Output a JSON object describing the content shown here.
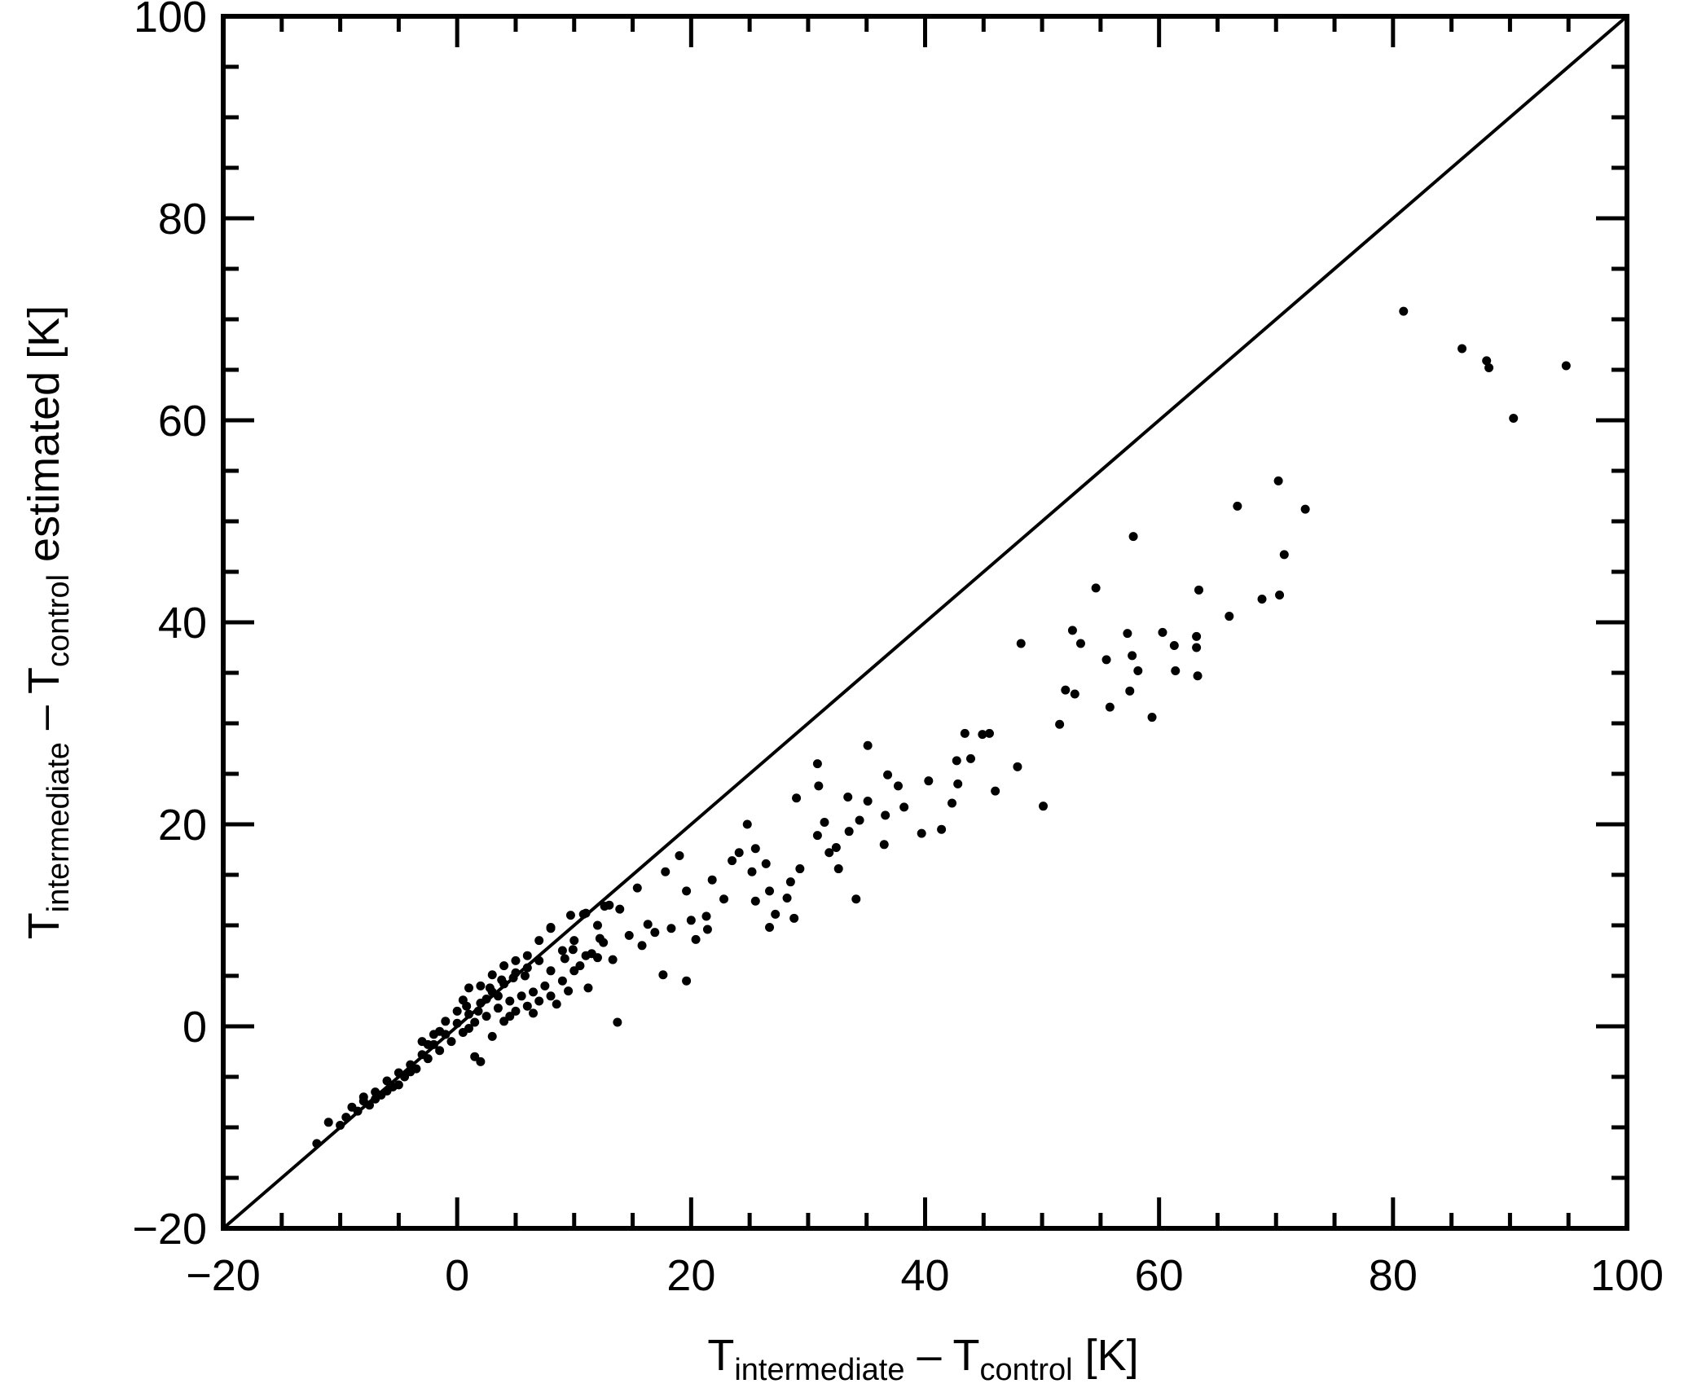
{
  "chart_data": {
    "type": "scatter",
    "x_label": [
      "T",
      "intermediate",
      " – T",
      "control",
      " [K]"
    ],
    "y_label": [
      "T",
      "intermediate",
      " – T",
      "control",
      " estimated [K]"
    ],
    "xlim": [
      -20,
      100
    ],
    "ylim": [
      -20,
      100
    ],
    "xticks": [
      {
        "value": -20,
        "label": "−20"
      },
      0,
      20,
      40,
      60,
      80,
      100
    ],
    "yticks": [
      {
        "value": -20,
        "label": "−20"
      },
      0,
      20,
      40,
      60,
      80,
      100
    ],
    "xminorticks": [
      -15,
      -10,
      -5,
      5,
      10,
      15,
      25,
      30,
      35,
      45,
      50,
      55,
      65,
      70,
      75,
      85,
      90,
      95
    ],
    "yminorticks": [
      -15,
      -10,
      -5,
      5,
      10,
      15,
      25,
      30,
      35,
      45,
      50,
      55,
      65,
      70,
      75,
      85,
      90,
      95
    ],
    "reference_line": {
      "x": [
        -20,
        100
      ],
      "y": [
        -20,
        100
      ],
      "color": "#000000"
    },
    "color": "#000000",
    "x": [
      80.9,
      85.9,
      88.0,
      88.2,
      94.8,
      90.3,
      70.2,
      66.7,
      72.5,
      57.8,
      70.7,
      54.6,
      63.4,
      70.3,
      68.8,
      66.0,
      52.6,
      57.3,
      60.3,
      63.2,
      48.2,
      53.3,
      61.3,
      63.2,
      57.7,
      55.5,
      58.2,
      61.4,
      63.3,
      52.0,
      52.8,
      57.5,
      55.8,
      59.4,
      51.5,
      43.4,
      44.9,
      45.5,
      35.1,
      30.8,
      42.7,
      43.9,
      47.9,
      36.8,
      37.7,
      40.3,
      42.8,
      46.0,
      30.9,
      29.0,
      33.4,
      35.1,
      38.2,
      50.1,
      42.3,
      36.6,
      34.4,
      31.4,
      24.8,
      41.4,
      39.7,
      33.5,
      30.8,
      36.5,
      32.4,
      31.8,
      24.1,
      25.5,
      19.0,
      23.5,
      26.4,
      29.3,
      32.6,
      25.2,
      17.8,
      21.8,
      28.5,
      26.7,
      15.4,
      19.6,
      34.1,
      25.5,
      12.6,
      13.9,
      22.8,
      28.2,
      21.3,
      27.2,
      28.8,
      26.7,
      20.0,
      16.3,
      18.3,
      21.4,
      10.8,
      9.7,
      14.7,
      16.9,
      8.0,
      20.4,
      12.2,
      15.8,
      11.5,
      13.3,
      9.2,
      9.9,
      17.6,
      19.6,
      11.2,
      13.7,
      -12,
      -11,
      -10,
      -9.5,
      -9,
      -8.5,
      -8,
      -7.5,
      -7,
      -6.5,
      -6,
      -5.5,
      -5,
      -4.5,
      -4,
      -3.5,
      -3,
      -2.5,
      -2,
      -1.5,
      -1,
      -0.5,
      0,
      0.5,
      1,
      1.5,
      2,
      2.5,
      3,
      3.5,
      4,
      4.5,
      5,
      5.5,
      6,
      6.5,
      7,
      7.5,
      8,
      2,
      1.5,
      3,
      4,
      5,
      6,
      7,
      8,
      9,
      10,
      -5,
      -4,
      -2,
      0,
      1,
      2,
      3,
      4,
      5,
      6,
      -1,
      0.5,
      3.5,
      2.5,
      -3,
      -6,
      -7,
      8,
      9,
      10,
      11,
      12,
      -8,
      1,
      4.5,
      6.5,
      8.5,
      9.5,
      -2.5,
      -1.5,
      0.8,
      1.8,
      2.8,
      3.8,
      4.8,
      5.8,
      7,
      10.5,
      12.5,
      11,
      13,
      12
    ],
    "y": [
      70.8,
      67.1,
      65.9,
      65.2,
      65.4,
      60.2,
      54.0,
      51.5,
      51.2,
      48.5,
      46.7,
      43.4,
      43.2,
      42.7,
      42.3,
      40.6,
      39.2,
      38.9,
      39.0,
      38.6,
      37.9,
      37.9,
      37.7,
      37.5,
      36.7,
      36.3,
      35.2,
      35.2,
      34.7,
      33.3,
      32.9,
      33.2,
      31.6,
      30.6,
      29.9,
      29.0,
      28.9,
      29.0,
      27.8,
      26.0,
      26.3,
      26.5,
      25.7,
      24.9,
      23.8,
      24.3,
      24.0,
      23.3,
      23.8,
      22.6,
      22.7,
      22.3,
      21.7,
      21.8,
      22.1,
      20.9,
      20.4,
      20.2,
      20.0,
      19.5,
      19.1,
      19.3,
      18.9,
      18.0,
      17.7,
      17.2,
      17.2,
      17.6,
      16.9,
      16.4,
      16.1,
      15.6,
      15.6,
      15.3,
      15.3,
      14.5,
      14.3,
      13.4,
      13.7,
      13.4,
      12.6,
      12.4,
      11.9,
      11.6,
      12.6,
      12.7,
      10.9,
      11.1,
      10.7,
      9.8,
      10.5,
      10.1,
      9.7,
      9.6,
      11.1,
      11.0,
      9.0,
      9.3,
      9.7,
      8.6,
      8.7,
      8.0,
      7.2,
      6.6,
      6.7,
      7.6,
      5.1,
      4.5,
      3.8,
      0.4,
      -11.6,
      -9.5,
      -9.8,
      -9,
      -8,
      -8.4,
      -7,
      -7.8,
      -6.5,
      -6.8,
      -5.4,
      -6,
      -4.6,
      -5,
      -3.8,
      -4.2,
      -2.8,
      -3.2,
      -1.8,
      -2.4,
      -0.8,
      -1.5,
      0.3,
      -0.6,
      1.2,
      0.4,
      2.3,
      1,
      3.4,
      1.8,
      4.2,
      2.5,
      5.3,
      3,
      5.8,
      3.4,
      6.5,
      4,
      5.5,
      -3.5,
      -3,
      -1,
      0.5,
      1.5,
      2,
      2.5,
      3,
      4.5,
      5.5,
      -5.8,
      -4.5,
      -0.8,
      1.5,
      3.8,
      4,
      5.1,
      6,
      6.5,
      7,
      0.5,
      2.6,
      3,
      2.7,
      -1.5,
      -6.4,
      -7.2,
      9.8,
      7.5,
      8.5,
      7,
      6.8,
      -7.4,
      -0.2,
      1,
      1.3,
      2.2,
      3.5,
      -1.8,
      -0.5,
      2,
      1.5,
      3.8,
      4.6,
      4.8,
      5,
      8.5,
      6,
      8.3,
      11.2,
      12,
      10
    ]
  }
}
